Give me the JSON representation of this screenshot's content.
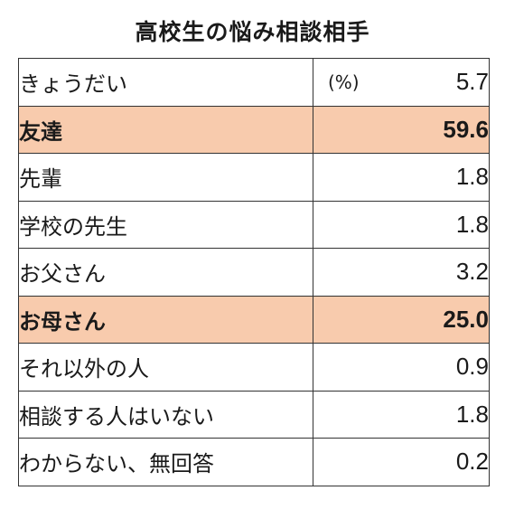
{
  "chart_data": {
    "type": "table",
    "title": "高校生の悩み相談相手",
    "unit": "(%)",
    "highlight_color": "#f8cbad",
    "rows": [
      {
        "label": "きょうだい",
        "value": "5.7",
        "highlight": false
      },
      {
        "label": "友達",
        "value": "59.6",
        "highlight": true
      },
      {
        "label": "先輩",
        "value": "1.8",
        "highlight": false
      },
      {
        "label": "学校の先生",
        "value": "1.8",
        "highlight": false
      },
      {
        "label": "お父さん",
        "value": "3.2",
        "highlight": false
      },
      {
        "label": "お母さん",
        "value": "25.0",
        "highlight": true
      },
      {
        "label": "それ以外の人",
        "value": "0.9",
        "highlight": false
      },
      {
        "label": "相談する人はいない",
        "value": "1.8",
        "highlight": false
      },
      {
        "label": "わからない、無回答",
        "value": "0.2",
        "highlight": false
      }
    ]
  }
}
